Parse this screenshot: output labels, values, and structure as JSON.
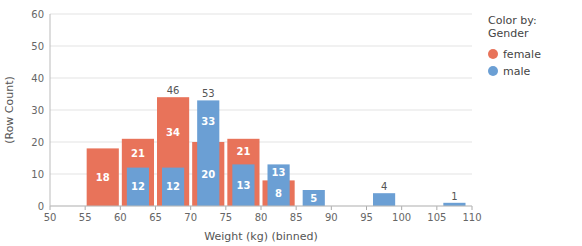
{
  "chart_data": {
    "type": "histogram",
    "bins": [
      50,
      55,
      60,
      65,
      70,
      75,
      80,
      85,
      90,
      95,
      100,
      105,
      110
    ],
    "series": [
      {
        "name": "female",
        "color": "#E8735A",
        "values": [
          0,
          18,
          21,
          34,
          20,
          21,
          8,
          0,
          0,
          0,
          0,
          0
        ]
      },
      {
        "name": "male",
        "color": "#6B9FD4",
        "values": [
          0,
          0,
          12,
          12,
          33,
          13,
          13,
          5,
          0,
          4,
          0,
          1
        ]
      }
    ],
    "totals": [
      null,
      null,
      null,
      46,
      53,
      null,
      null,
      null,
      null,
      null,
      null,
      null
    ],
    "xlabel": "Weight (kg) (binned)",
    "ylabel": "(Row Count)",
    "legend_title": "Color by:\nGender",
    "xlim": [
      50,
      110
    ],
    "ylim": [
      0,
      60
    ],
    "xticks": [
      50,
      55,
      60,
      65,
      70,
      75,
      80,
      85,
      90,
      95,
      100,
      105,
      110
    ],
    "yticks": [
      0,
      10,
      20,
      30,
      40,
      50,
      60
    ],
    "grid": true,
    "legend": "right",
    "stacked": false,
    "data_labels": true
  }
}
